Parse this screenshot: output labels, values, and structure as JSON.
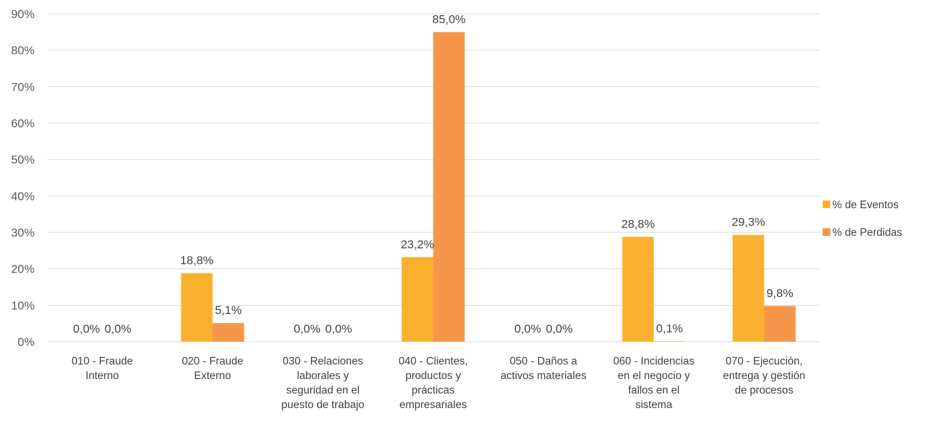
{
  "chart_data": {
    "type": "bar",
    "title": "",
    "xlabel": "",
    "ylabel": "",
    "ylim": [
      0,
      90
    ],
    "yticks": [
      "0%",
      "10%",
      "20%",
      "30%",
      "40%",
      "50%",
      "60%",
      "70%",
      "80%",
      "90%"
    ],
    "grid": true,
    "legend_position": "right",
    "categories": [
      [
        "010 - Fraude",
        "Interno"
      ],
      [
        "020 - Fraude",
        "Externo"
      ],
      [
        "030 - Relaciones",
        "laborales y",
        "seguridad en el",
        "puesto de trabajo"
      ],
      [
        "040 - Clientes,",
        "productos y",
        "prácticas",
        "empresariales"
      ],
      [
        "050 - Daños a",
        "activos materiales"
      ],
      [
        "060 - Incidencias",
        "en el negocio y",
        "fallos en el",
        "sistema"
      ],
      [
        "070 - Ejecución,",
        "entrega y gestión",
        "de procesos"
      ]
    ],
    "series": [
      {
        "name": "% de Eventos",
        "color": "#FBB12F",
        "values": [
          0.0,
          18.8,
          0.0,
          23.2,
          0.0,
          28.8,
          29.3
        ],
        "labels": [
          "0,0%",
          "18,8%",
          "0,0%",
          "23,2%",
          "0,0%",
          "28,8%",
          "29,3%"
        ]
      },
      {
        "name": "% de Perdidas",
        "color": "#F6964A",
        "values": [
          0.0,
          5.1,
          0.0,
          85.0,
          0.0,
          0.1,
          9.8
        ],
        "labels": [
          "0,0%",
          "5,1%",
          "0,0%",
          "85,0%",
          "0,0%",
          "0,1%",
          "9,8%"
        ]
      }
    ]
  }
}
